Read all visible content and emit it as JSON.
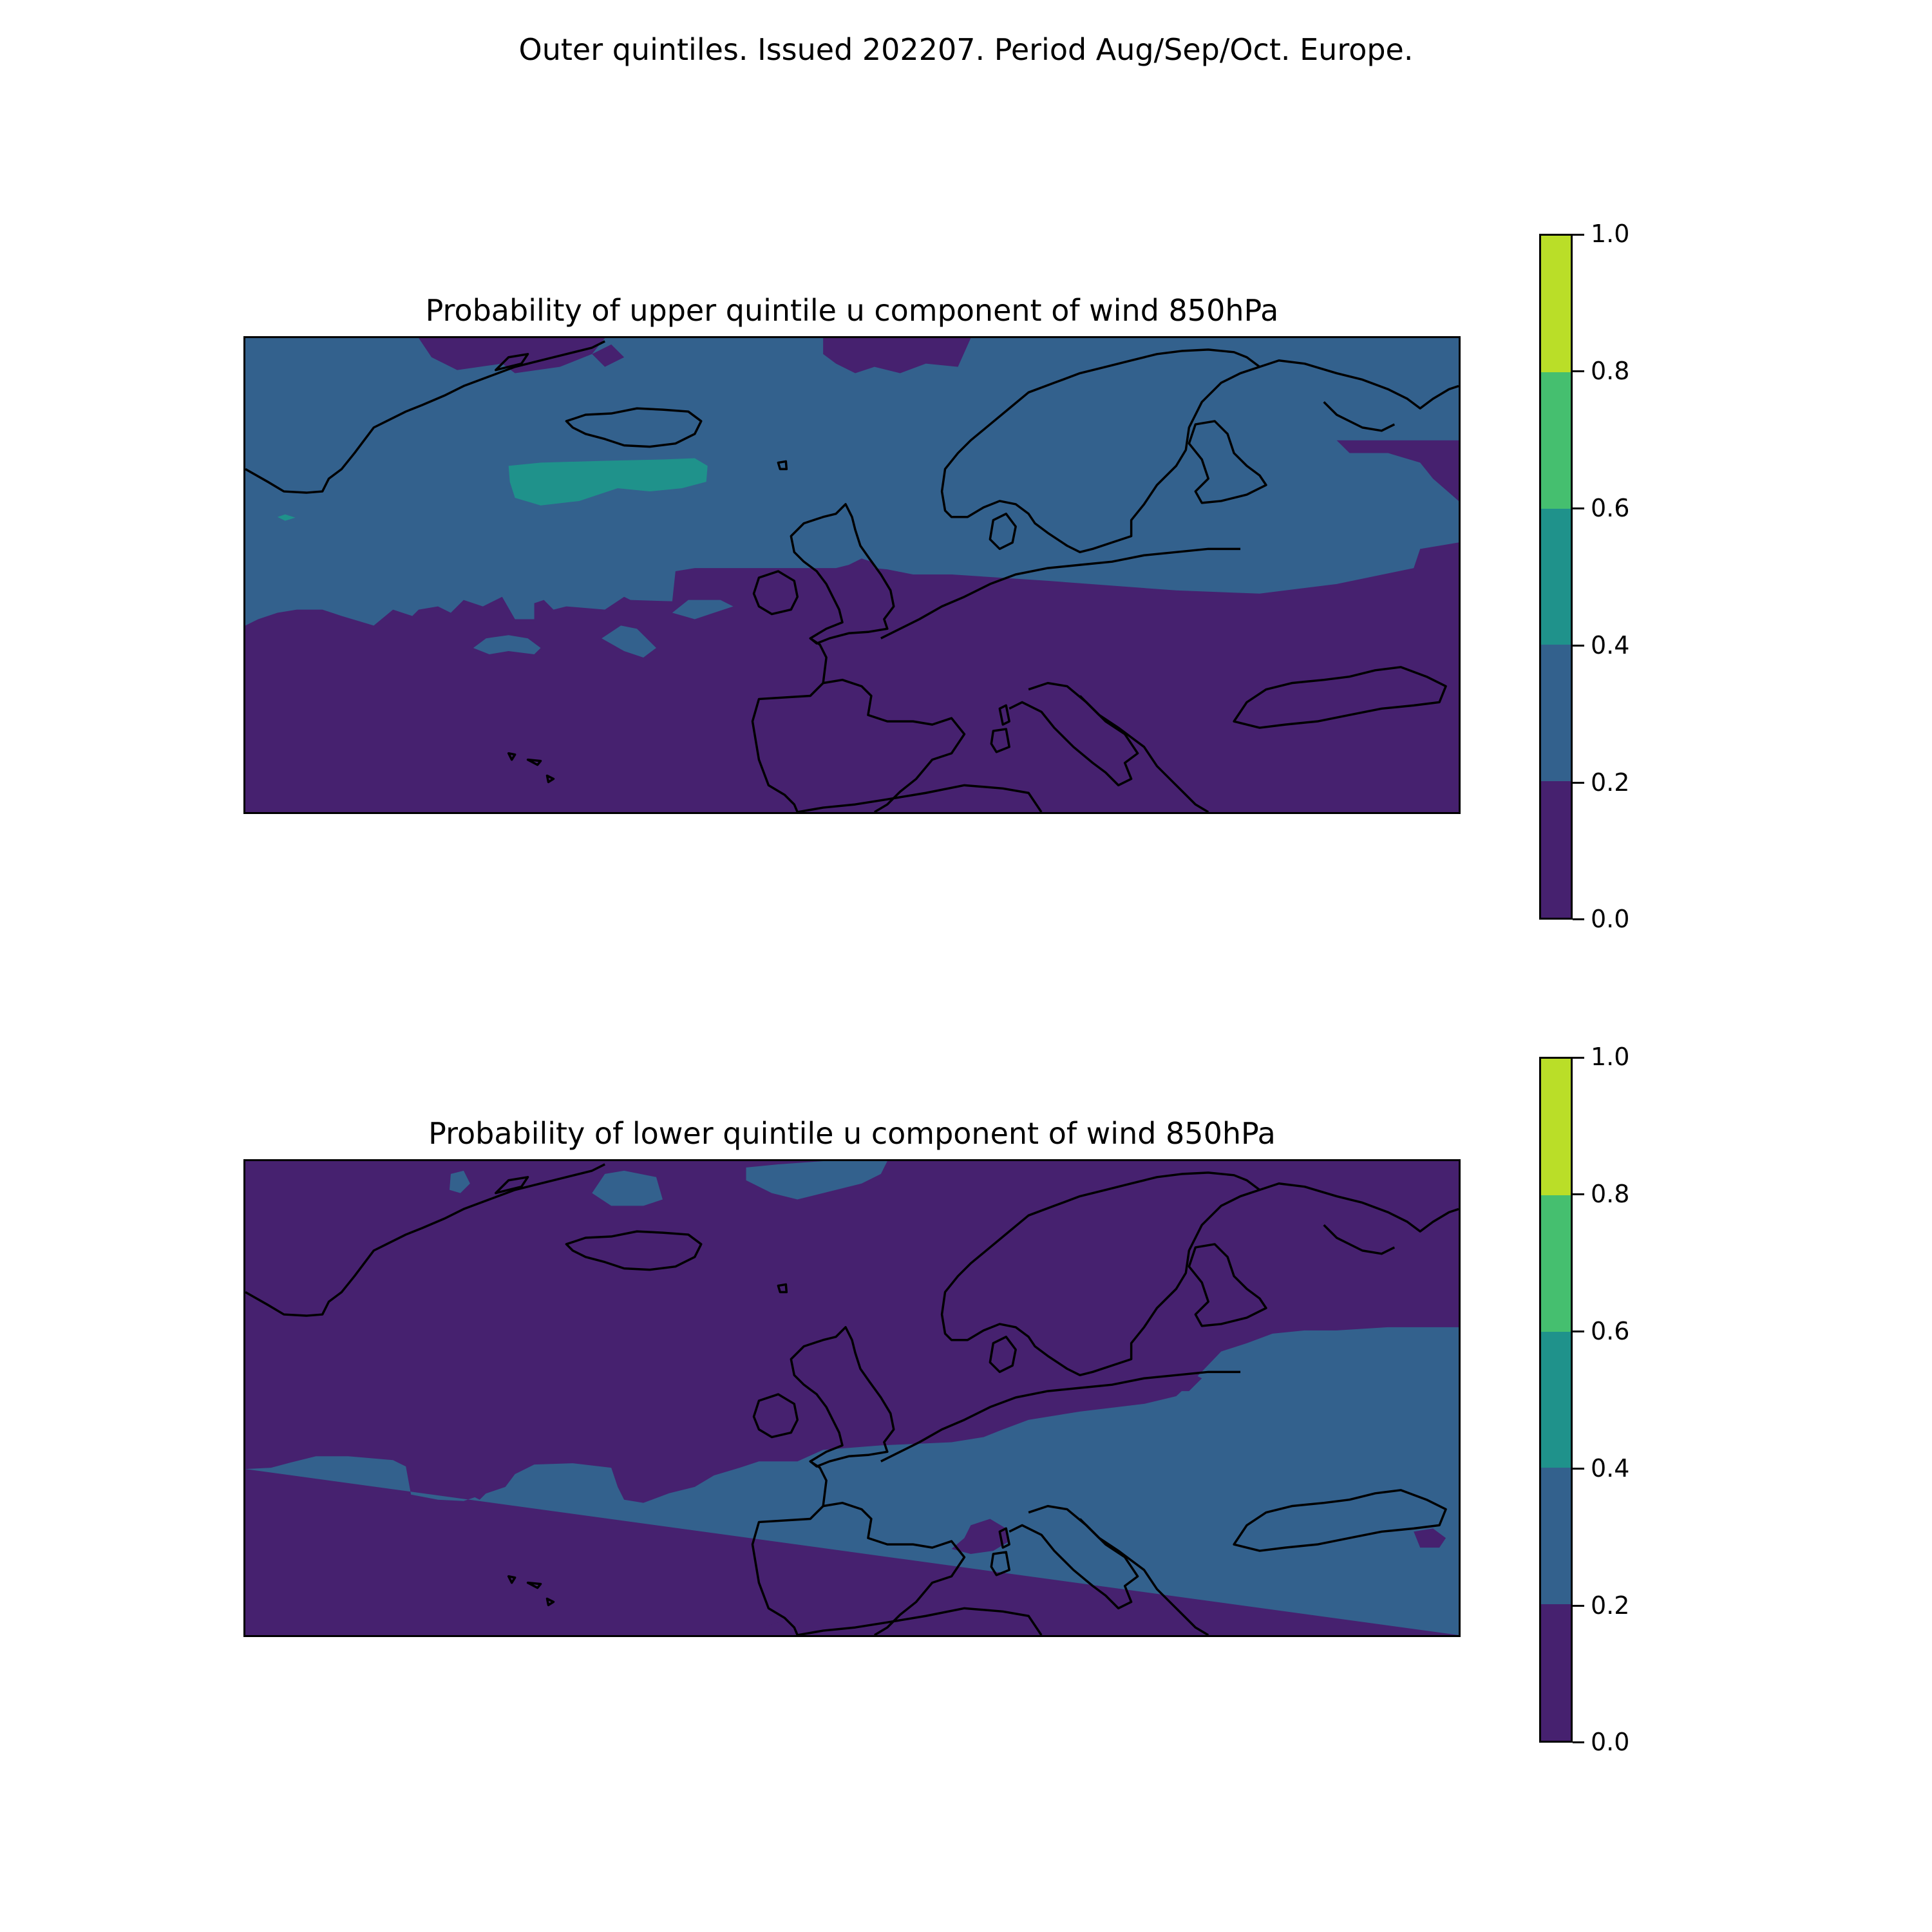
{
  "figure": {
    "suptitle": "Outer quintiles. Issued 202207. Period Aug/Sep/Oct. Europe."
  },
  "panels": [
    {
      "title": "Probability of upper quintile u component of wind 850hPa",
      "dominant_north_level": 0.3,
      "dominant_south_level": 0.1,
      "highlight_level": 0.5
    },
    {
      "title": "Probability of lower quintile u component of wind 850hPa",
      "dominant_north_level": 0.1,
      "dominant_south_level": 0.3
    }
  ],
  "colorbar": {
    "ticks": [
      "0.0",
      "0.2",
      "0.4",
      "0.6",
      "0.8",
      "1.0"
    ],
    "levels": [
      {
        "range": [
          0.0,
          0.2
        ],
        "color": "#46216f"
      },
      {
        "range": [
          0.2,
          0.4
        ],
        "color": "#33618d"
      },
      {
        "range": [
          0.4,
          0.6
        ],
        "color": "#1f928b"
      },
      {
        "range": [
          0.6,
          0.8
        ],
        "color": "#45bf6f"
      },
      {
        "range": [
          0.8,
          1.0
        ],
        "color": "#bade28"
      }
    ]
  },
  "colors": {
    "purple": "#46216f",
    "blue": "#33618d",
    "teal": "#1f928b",
    "coastline": "#000000"
  }
}
